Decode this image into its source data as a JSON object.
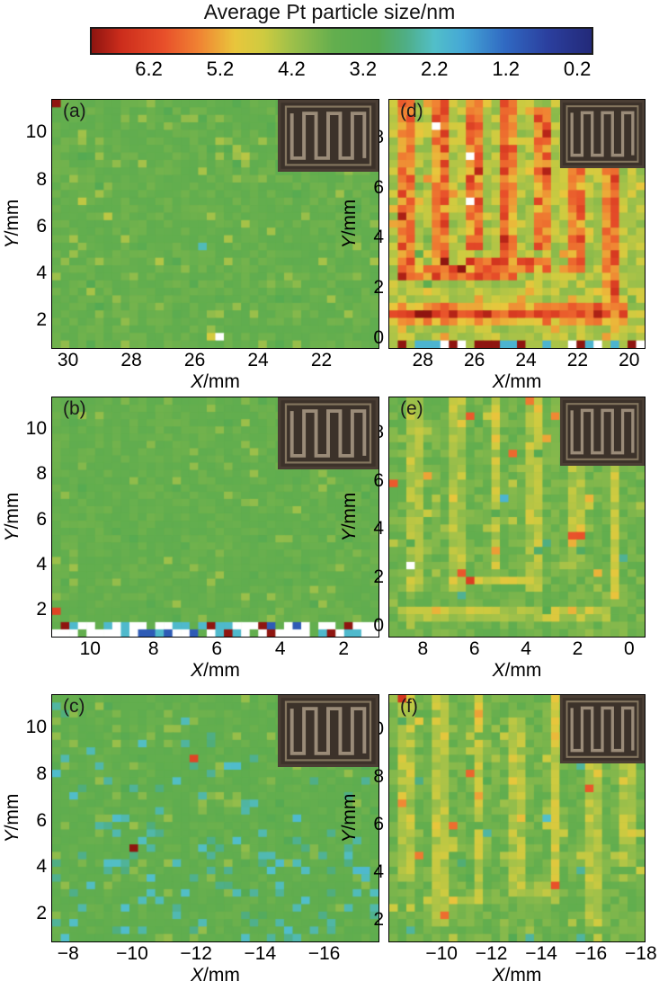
{
  "title": "Average Pt particle size/nm",
  "chart_data": {
    "type": "heatmap",
    "title": "Average Pt particle size/nm",
    "layout": "2 columns x 3 rows of spatial maps, shared horizontal colorbar on top, electrode photo inset in top-right of each panel",
    "colorbar": {
      "label": "Average Pt particle size/nm",
      "orientation": "horizontal",
      "value_range": [
        7,
        0
      ],
      "tick_values": [
        6.2,
        5.2,
        4.2,
        3.2,
        2.2,
        1.2,
        0.2
      ],
      "tick_labels": [
        "6.2",
        "5.2",
        "4.2",
        "3.2",
        "2.2",
        "1.2",
        "0.2"
      ]
    },
    "colormap": {
      "stops": [
        [
          0.0,
          "#232a7a"
        ],
        [
          0.6,
          "#2b3f9e"
        ],
        [
          1.2,
          "#3069c2"
        ],
        [
          1.8,
          "#45a8d6"
        ],
        [
          2.2,
          "#52bfc9"
        ],
        [
          2.6,
          "#4fae86"
        ],
        [
          3.0,
          "#55aa52"
        ],
        [
          3.6,
          "#63ae4e"
        ],
        [
          4.2,
          "#9ec04a"
        ],
        [
          4.6,
          "#cfcb40"
        ],
        [
          5.0,
          "#e9c63c"
        ],
        [
          5.5,
          "#f08433"
        ],
        [
          6.0,
          "#e84f2a"
        ],
        [
          6.6,
          "#cc2d1c"
        ],
        [
          7.0,
          "#8f1510"
        ]
      ]
    },
    "inset": {
      "name": "electrode-photo",
      "bg": "#3c322a",
      "line": "#9a8b78"
    },
    "panels": [
      {
        "label": "(a)",
        "xlabel": "X/mm",
        "ylabel": "Y/mm",
        "x_range": [
          30.5,
          20.2
        ],
        "y_range": [
          0.8,
          11.4
        ],
        "x_tick_values": [
          30,
          28,
          26,
          24,
          22
        ],
        "x_tick_labels": [
          "30",
          "28",
          "26",
          "24",
          "22"
        ],
        "y_tick_values": [
          2,
          4,
          6,
          8,
          10
        ],
        "y_tick_labels": [
          "2",
          "4",
          "6",
          "8",
          "10"
        ],
        "description": "uniform ~3.6 nm green field with faint speckles, one dark-red cell top-left, one white cell near bottom centre",
        "heat": {
          "seed": 11,
          "cols": 38,
          "rows": 33,
          "base": 3.62,
          "noise": 0.16,
          "speckles": [
            {
              "p": 0.06,
              "dv": 0.5
            },
            {
              "p": 0.025,
              "dv": -0.45
            },
            {
              "p": 0.004,
              "dv": 0.9
            }
          ],
          "anomalies": [
            {
              "u": 0.012,
              "v": 0.985,
              "value": 7.0
            },
            {
              "u": 0.5,
              "v": 0.06,
              "value": "white"
            },
            {
              "u": 0.45,
              "v": 0.42,
              "value": 2.3
            }
          ]
        }
      },
      {
        "label": "(b)",
        "xlabel": "X/mm",
        "ylabel": "Y/mm",
        "x_range": [
          11.2,
          0.9
        ],
        "y_range": [
          0.8,
          11.4
        ],
        "x_tick_values": [
          10,
          8,
          6,
          4,
          2
        ],
        "x_tick_labels": [
          "10",
          "8",
          "6",
          "4",
          "2"
        ],
        "y_tick_values": [
          2,
          4,
          6,
          8,
          10
        ],
        "y_tick_labels": [
          "2",
          "4",
          "6",
          "8",
          "10"
        ],
        "description": "uniform ~3.6 nm green field; bottom rows show white/cyan band with a few dark-red cells; red cell at lower left edge",
        "heat": {
          "seed": 22,
          "cols": 38,
          "rows": 33,
          "base": 3.6,
          "noise": 0.15,
          "speckles": [
            {
              "p": 0.05,
              "dv": 0.45
            },
            {
              "p": 0.02,
              "dv": -0.4
            }
          ],
          "bottom_band": {
            "v_max": 0.075,
            "palette": [
              [
                "white",
                0.42
              ],
              [
                2.1,
                0.28
              ],
              [
                1.0,
                0.06
              ],
              [
                7.0,
                0.1
              ],
              [
                3.6,
                0.14
              ]
            ]
          },
          "anomalies": [
            {
              "u": 0.012,
              "v": 0.1,
              "value": 6.2
            }
          ]
        }
      },
      {
        "label": "(c)",
        "xlabel": "X/mm",
        "ylabel": "Y/mm",
        "x_range": [
          -7.5,
          -17.7
        ],
        "y_range": [
          0.8,
          11.4
        ],
        "x_tick_values": [
          -8,
          -10,
          -12,
          -14,
          -16
        ],
        "x_tick_labels": [
          "−8",
          "−10",
          "−12",
          "−14",
          "−16"
        ],
        "y_tick_values": [
          2,
          4,
          6,
          8,
          10
        ],
        "y_tick_labels": [
          "2",
          "4",
          "6",
          "8",
          "10"
        ],
        "description": "green ~3.55 nm field with cyan speckles increasing toward bottom; red cell near (-12, 8.5); dark-red cell near (-10, 5)",
        "heat": {
          "seed": 33,
          "cols": 38,
          "rows": 33,
          "base": 3.55,
          "noise": 0.16,
          "speckles": [
            {
              "p": 0.05,
              "dv": 0.45
            },
            {
              "p": 0.02,
              "dv": -0.5
            }
          ],
          "cyan_grad": {
            "p_top": 0.01,
            "p_bottom": 0.22,
            "value": 2.4
          },
          "anomalies": [
            {
              "u": 0.43,
              "v": 0.73,
              "value": 6.2
            },
            {
              "u": 0.25,
              "v": 0.39,
              "value": 7.0
            }
          ]
        }
      },
      {
        "label": "(d)",
        "xlabel": "X/mm",
        "ylabel": "Y/mm",
        "x_range": [
          29.3,
          19.4
        ],
        "y_range": [
          -0.4,
          9.5
        ],
        "x_tick_values": [
          28,
          26,
          24,
          22,
          20
        ],
        "x_tick_labels": [
          "28",
          "26",
          "24",
          "22",
          "20"
        ],
        "y_tick_values": [
          0,
          2,
          4,
          6,
          8
        ],
        "y_tick_labels": [
          "0",
          "2",
          "4",
          "6",
          "8"
        ],
        "description": "red/orange (~6 nm) serpentine electrode track over yellow-green (~4.4 nm) background; strong red band near y=1; mixed cyan/white/dark-red bottom row; a few white cells",
        "heat": {
          "seed": 44,
          "cols": 30,
          "rows": 33,
          "base": 4.35,
          "noise": 0.38,
          "hw": 0.035,
          "hwv": 0.035,
          "seg_amp": 1.7,
          "segments": [
            {
              "o": "v",
              "u": 0.07,
              "v0": 0.3,
              "v1": 1.0
            },
            {
              "o": "v",
              "u": 0.21,
              "v0": 0.3,
              "v1": 1.0
            },
            {
              "o": "v",
              "u": 0.335,
              "v0": 0.4,
              "v1": 1.0
            },
            {
              "o": "v",
              "u": 0.46,
              "v0": 0.34,
              "v1": 1.0
            },
            {
              "o": "v",
              "u": 0.6,
              "v0": 0.4,
              "v1": 0.97
            },
            {
              "o": "v",
              "u": 0.735,
              "v0": 0.3,
              "v1": 1.0
            },
            {
              "o": "v",
              "u": 0.88,
              "v0": 0.17,
              "v1": 0.95
            },
            {
              "o": "h",
              "v": 0.34,
              "u0": 0.31,
              "u1": 0.63
            },
            {
              "o": "h",
              "v": 0.3,
              "u0": 0.03,
              "u1": 0.5
            },
            {
              "o": "h",
              "v": 0.14,
              "u0": 0.0,
              "u1": 0.92
            }
          ],
          "speckles": [
            {
              "p": 0.07,
              "dv": 0.7
            },
            {
              "p": 0.02,
              "dv": -0.6
            }
          ],
          "bottom_band": {
            "v_max": 0.045,
            "palette": [
              [
                7.0,
                0.22
              ],
              [
                "white",
                0.1
              ],
              [
                2.0,
                0.3
              ],
              [
                1.2,
                0.12
              ],
              [
                4.3,
                0.26
              ]
            ]
          },
          "anomalies": [
            {
              "u": 0.17,
              "v": 0.88,
              "value": "white"
            },
            {
              "u": 0.3,
              "v": 0.78,
              "value": "white"
            },
            {
              "u": 0.33,
              "v": 0.6,
              "value": "white"
            },
            {
              "u": 0.23,
              "v": 0.35,
              "value": 7.0
            },
            {
              "u": 0.27,
              "v": 0.31,
              "value": 7.0
            }
          ]
        }
      },
      {
        "label": "(e)",
        "xlabel": "X/mm",
        "ylabel": "Y/mm",
        "x_range": [
          9.3,
          -0.6
        ],
        "y_range": [
          -0.45,
          9.45
        ],
        "x_tick_values": [
          8,
          6,
          4,
          2,
          0
        ],
        "x_tick_labels": [
          "8",
          "6",
          "4",
          "2",
          "0"
        ],
        "y_tick_values": [
          0,
          2,
          4,
          6,
          8
        ],
        "y_tick_labels": [
          "0",
          "2",
          "4",
          "6",
          "8"
        ],
        "description": "green ~3.75 nm field with faint yellow (~4.5 nm) serpentine pattern; scattered orange and cyan specks; one white cell lower left",
        "heat": {
          "seed": 55,
          "cols": 30,
          "rows": 32,
          "base": 3.75,
          "noise": 0.24,
          "hw": 0.03,
          "hwv": 0.03,
          "seg_amp": 0.8,
          "segments": [
            {
              "o": "v",
              "u": 0.1,
              "v0": 0.2,
              "v1": 1.0
            },
            {
              "o": "v",
              "u": 0.265,
              "v0": 0.2,
              "v1": 1.0
            },
            {
              "o": "v",
              "u": 0.42,
              "v0": 0.28,
              "v1": 1.0
            },
            {
              "o": "v",
              "u": 0.575,
              "v0": 0.2,
              "v1": 1.0
            },
            {
              "o": "v",
              "u": 0.73,
              "v0": 0.28,
              "v1": 0.95
            },
            {
              "o": "v",
              "u": 0.88,
              "v0": 0.15,
              "v1": 1.0
            },
            {
              "o": "h",
              "v": 0.235,
              "u0": 0.24,
              "u1": 0.6
            },
            {
              "o": "h",
              "v": 0.1,
              "u0": 0.05,
              "u1": 0.85
            }
          ],
          "speckles": [
            {
              "p": 0.05,
              "dv": 0.6
            },
            {
              "p": 0.012,
              "dv": 1.5
            },
            {
              "p": 0.012,
              "dv": -1.3
            }
          ],
          "anomalies": [
            {
              "u": 0.07,
              "v": 0.3,
              "value": "white"
            },
            {
              "u": 0.3,
              "v": 0.92,
              "value": 5.9
            },
            {
              "u": 0.02,
              "v": 0.63,
              "value": 5.9
            },
            {
              "u": 0.44,
              "v": 0.57,
              "value": 2.0
            },
            {
              "u": 0.55,
              "v": 0.97,
              "value": 5.6
            }
          ]
        }
      },
      {
        "label": "(f)",
        "xlabel": "X/mm",
        "ylabel": "Y/mm",
        "x_range": [
          -7.9,
          -18.15
        ],
        "y_range": [
          1.1,
          11.45
        ],
        "x_tick_values": [
          -10,
          -12,
          -14,
          -16,
          -18
        ],
        "x_tick_labels": [
          "−10",
          "−12",
          "−14",
          "−16",
          "−18"
        ],
        "y_tick_values": [
          2,
          4,
          6,
          8,
          10
        ],
        "y_tick_labels": [
          "2",
          "4",
          "6",
          "8",
          "10"
        ],
        "description": "green ~3.75 nm field with faint yellow vertical serpentine stripes; occasional orange and cyan specks",
        "heat": {
          "seed": 66,
          "cols": 30,
          "rows": 33,
          "base": 3.75,
          "noise": 0.24,
          "hw": 0.028,
          "hwv": 0.03,
          "seg_amp": 0.85,
          "segments": [
            {
              "o": "v",
              "u": 0.07,
              "v0": 0.25,
              "v1": 1.0
            },
            {
              "o": "v",
              "u": 0.2,
              "v0": 0.05,
              "v1": 1.0
            },
            {
              "o": "v",
              "u": 0.35,
              "v0": 0.15,
              "v1": 1.0
            },
            {
              "o": "v",
              "u": 0.5,
              "v0": 0.22,
              "v1": 0.92
            },
            {
              "o": "v",
              "u": 0.65,
              "v0": 0.15,
              "v1": 1.0
            },
            {
              "o": "v",
              "u": 0.8,
              "v0": 0.05,
              "v1": 1.0
            },
            {
              "o": "v",
              "u": 0.93,
              "v0": 0.3,
              "v1": 1.0
            },
            {
              "o": "h",
              "v": 0.2,
              "u0": 0.46,
              "u1": 0.68
            }
          ],
          "speckles": [
            {
              "p": 0.05,
              "dv": 0.6
            },
            {
              "p": 0.01,
              "dv": 1.4
            },
            {
              "p": 0.012,
              "dv": -1.2
            }
          ],
          "anomalies": [
            {
              "u": 0.3,
              "v": 0.67,
              "value": 5.8
            },
            {
              "u": 0.63,
              "v": 0.5,
              "value": 2.2
            },
            {
              "u": 0.12,
              "v": 0.35,
              "value": 5.6
            }
          ]
        }
      }
    ]
  }
}
